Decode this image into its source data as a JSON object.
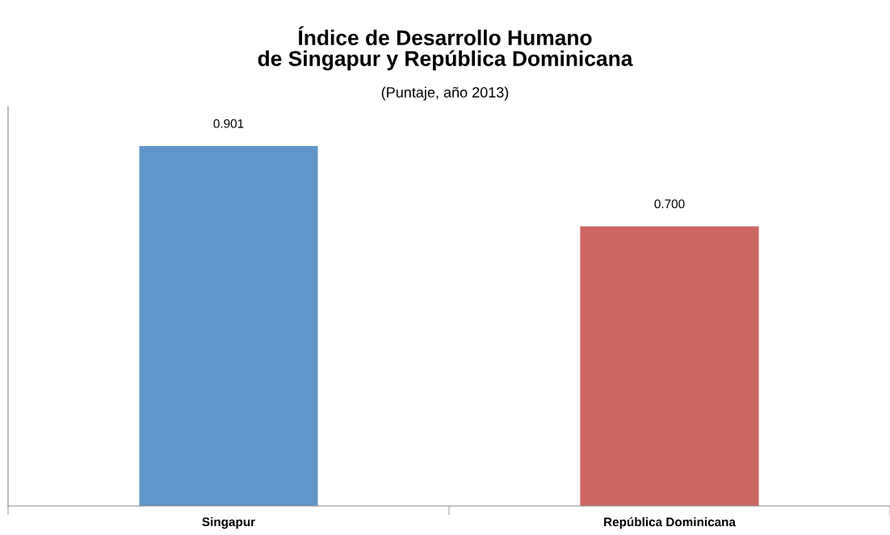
{
  "chart_data": {
    "type": "bar",
    "title": "Índice de Desarrollo Humano\nde Singapur y República Dominicana",
    "subtitle": "(Puntaje, año 2013)",
    "categories": [
      "Singapur",
      "República Dominicana"
    ],
    "values": [
      0.901,
      0.7
    ],
    "value_labels": [
      "0.901",
      "0.700"
    ],
    "colors": [
      "#6096c9",
      "#cc6660"
    ],
    "ylim": [
      0,
      1
    ],
    "tick_labels": "x",
    "grid": false,
    "legend": false
  }
}
